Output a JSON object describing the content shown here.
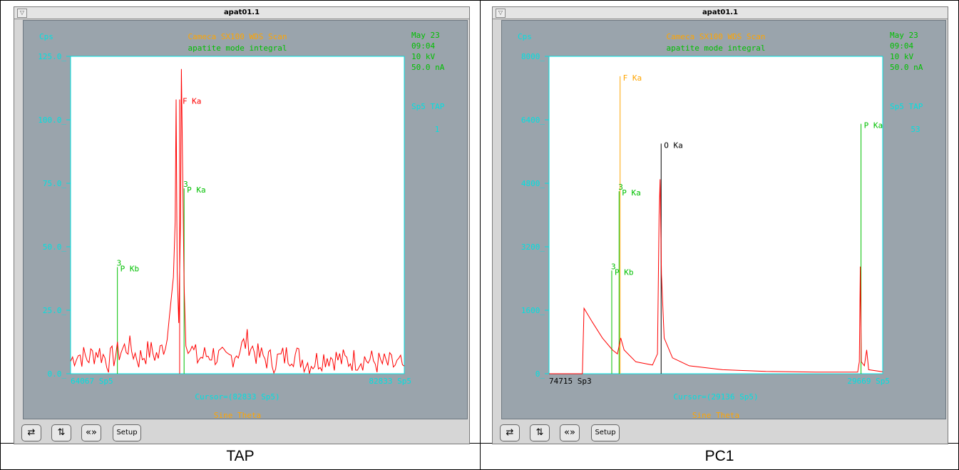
{
  "captions": [
    "TAP",
    "PC1"
  ],
  "toolbar": {
    "swap": "⇄",
    "updown": "⇅",
    "lr": "«»",
    "setup": "Setup"
  },
  "colors": {
    "panel": "#9aa4ac",
    "cyan": "#00e0e0",
    "orange": "#ffa500",
    "green": "#00c000",
    "red": "#ff0000",
    "black": "#000000"
  },
  "panels": [
    {
      "window_title": "apat01.1",
      "header_left": "Cps",
      "header_title": "Cameca SX100 WDS Scan",
      "header_subtitle": "apatite mode integral",
      "info": [
        "May 23",
        "09:04",
        "10 kV",
        "50.0 nA"
      ],
      "spectro": "Sp5 TAP",
      "spectro_num": "1",
      "x_start": "64067 Sp5",
      "x_end": "82833 Sp5",
      "cursor": "Cursor=(82833 Sp5)",
      "axis_name": "Sine Theta",
      "caption": "TAP",
      "chart_data": {
        "type": "line",
        "ylim": [
          0,
          125
        ],
        "yticks": [
          "0.0",
          "25.0",
          "50.0",
          "75.0",
          "100.0",
          "125.0"
        ],
        "xlim": [
          64067,
          82833
        ],
        "peaks": [
          {
            "label": "F Ka",
            "x": 70200,
            "y": 108,
            "color": "red"
          },
          {
            "label": "P Ka",
            "x": 70450,
            "y": 73,
            "color": "green",
            "prefix": "3"
          },
          {
            "label": "P Kb",
            "x": 66700,
            "y": 42,
            "color": "green",
            "prefix": "3"
          }
        ],
        "spectrum": [
          [
            64067,
            5
          ],
          [
            64400,
            8
          ],
          [
            65000,
            6
          ],
          [
            65600,
            9
          ],
          [
            66200,
            5
          ],
          [
            66700,
            8
          ],
          [
            67300,
            11
          ],
          [
            67900,
            6
          ],
          [
            68500,
            9
          ],
          [
            69000,
            7
          ],
          [
            69500,
            14
          ],
          [
            69850,
            38
          ],
          [
            69950,
            60
          ],
          [
            70000,
            108
          ],
          [
            70060,
            40
          ],
          [
            70150,
            20
          ],
          [
            70250,
            60
          ],
          [
            70300,
            120
          ],
          [
            70380,
            75
          ],
          [
            70450,
            35
          ],
          [
            70550,
            15
          ],
          [
            70800,
            10
          ],
          [
            71200,
            6
          ],
          [
            72000,
            8
          ],
          [
            72800,
            5
          ],
          [
            73500,
            9
          ],
          [
            74000,
            13
          ],
          [
            74600,
            7
          ],
          [
            75500,
            5
          ],
          [
            76500,
            8
          ],
          [
            77500,
            4
          ],
          [
            78500,
            7
          ],
          [
            79500,
            5
          ],
          [
            80500,
            6
          ],
          [
            81500,
            4
          ],
          [
            82833,
            3
          ]
        ]
      }
    },
    {
      "window_title": "apat01.1",
      "header_left": "Cps",
      "header_title": "Cameca SX100 WDS Scan",
      "header_subtitle": "apatite mode integral",
      "info": [
        "May 23",
        "09:04",
        "10 kV",
        "50.0 nA"
      ],
      "spectro": "Sp5 TAP",
      "spectro_num": "53",
      "x_start": "74715 Sp3",
      "x_end": "29669 Sp5",
      "cursor": "Cursor=(29136 Sp5)",
      "axis_name": "Sine Theta",
      "caption": "PC1",
      "chart_data": {
        "type": "line",
        "ylim": [
          0,
          8000
        ],
        "yticks": [
          "0",
          "1600",
          "3200",
          "4800",
          "6400",
          "8000"
        ],
        "xlim": [
          0,
          1000
        ],
        "peaks": [
          {
            "label": "F Ka",
            "x": 213,
            "y": 7500,
            "color": "orange"
          },
          {
            "label": "O Ka",
            "x": 336,
            "y": 5800,
            "color": "black"
          },
          {
            "label": "P Ka",
            "x": 935,
            "y": 6300,
            "color": "green"
          },
          {
            "label": "P Ka",
            "x": 210,
            "y": 4600,
            "color": "green",
            "prefix": "3"
          },
          {
            "label": "P Kb",
            "x": 188,
            "y": 2600,
            "color": "green",
            "prefix": "3"
          }
        ],
        "spectrum": [
          [
            0,
            0
          ],
          [
            100,
            0
          ],
          [
            105,
            1650
          ],
          [
            130,
            1300
          ],
          [
            160,
            900
          ],
          [
            190,
            600
          ],
          [
            205,
            500
          ],
          [
            215,
            900
          ],
          [
            225,
            600
          ],
          [
            260,
            300
          ],
          [
            310,
            220
          ],
          [
            325,
            500
          ],
          [
            330,
            4000
          ],
          [
            333,
            4900
          ],
          [
            337,
            2500
          ],
          [
            345,
            900
          ],
          [
            370,
            400
          ],
          [
            420,
            200
          ],
          [
            520,
            100
          ],
          [
            650,
            60
          ],
          [
            800,
            40
          ],
          [
            925,
            40
          ],
          [
            930,
            300
          ],
          [
            933,
            2700
          ],
          [
            936,
            300
          ],
          [
            945,
            200
          ],
          [
            952,
            600
          ],
          [
            958,
            100
          ],
          [
            1000,
            50
          ]
        ]
      }
    }
  ]
}
